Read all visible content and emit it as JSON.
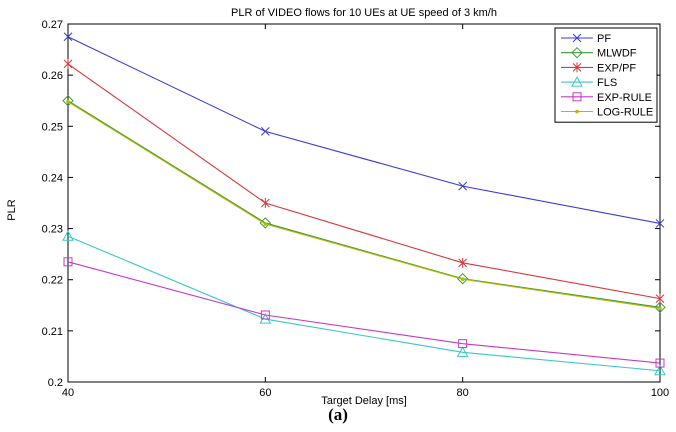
{
  "caption": "(a)",
  "chart_data": {
    "type": "line",
    "title": "PLR of VIDEO flows for 10 UEs at UE speed of 3 km/h",
    "xlabel": "Target Delay [ms]",
    "ylabel": "PLR",
    "x": [
      40,
      60,
      80,
      100
    ],
    "xlim": [
      40,
      100
    ],
    "ylim": [
      0.2,
      0.27
    ],
    "xticks": [
      "40",
      "60",
      "80",
      "100"
    ],
    "yticks": [
      "0.2",
      "0.21",
      "0.22",
      "0.23",
      "0.24",
      "0.25",
      "0.26",
      "0.27"
    ],
    "grid": true,
    "legend_position": "top-right",
    "series": [
      {
        "name": "PF",
        "color": "#3b3bd6",
        "marker": "x",
        "values": [
          0.2675,
          0.249,
          0.2383,
          0.231
        ]
      },
      {
        "name": "MLWDF",
        "color": "#3a9a3a",
        "marker": "diamond",
        "values": [
          0.255,
          0.2311,
          0.2202,
          0.2146
        ]
      },
      {
        "name": "EXP/PF",
        "color": "#d63a3a",
        "marker": "star",
        "values": [
          0.2622,
          0.235,
          0.2233,
          0.2163
        ]
      },
      {
        "name": "FLS",
        "color": "#3ac7c7",
        "marker": "triangle",
        "values": [
          0.2285,
          0.2123,
          0.2058,
          0.2022
        ]
      },
      {
        "name": "EXP-RULE",
        "color": "#c43ac4",
        "marker": "square",
        "values": [
          0.2235,
          0.2131,
          0.2075,
          0.2037
        ]
      },
      {
        "name": "LOG-RULE",
        "color": "#b8b800",
        "marker": "dot",
        "values": [
          0.2548,
          0.2309,
          0.2201,
          0.2144
        ]
      }
    ]
  }
}
